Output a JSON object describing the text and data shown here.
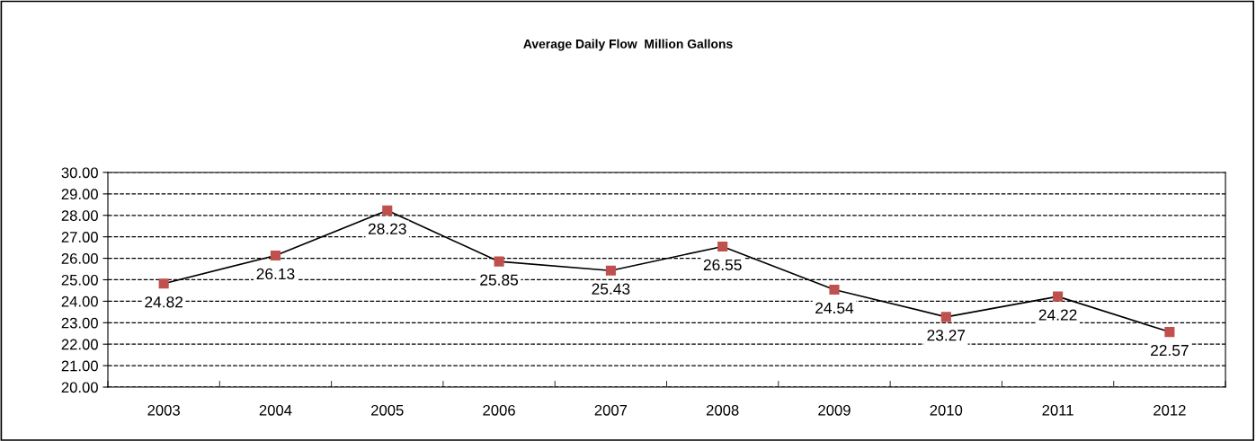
{
  "chart_data": {
    "type": "line",
    "title": "Average Daily Flow  Million Gallons",
    "categories": [
      "2003",
      "2004",
      "2005",
      "2006",
      "2007",
      "2008",
      "2009",
      "2010",
      "2011",
      "2012"
    ],
    "series": [
      {
        "color": "#c0504d",
        "values": [
          24.82,
          26.13,
          28.23,
          25.85,
          25.43,
          26.55,
          24.54,
          23.27,
          24.22,
          22.57
        ]
      }
    ],
    "ylim": [
      20,
      30
    ],
    "yticks": [
      {
        "value": 20,
        "label": "20.00"
      },
      {
        "value": 21,
        "label": "21.00"
      },
      {
        "value": 22,
        "label": "22.00"
      },
      {
        "value": 23,
        "label": "23.00"
      },
      {
        "value": 24,
        "label": "24.00"
      },
      {
        "value": 25,
        "label": "25.00"
      },
      {
        "value": 26,
        "label": "26.00"
      },
      {
        "value": 27,
        "label": "27.00"
      },
      {
        "value": 28,
        "label": "28.00"
      },
      {
        "value": 29,
        "label": "29.00"
      },
      {
        "value": 30,
        "label": "30.00"
      }
    ],
    "grid": "y",
    "legend": false,
    "marker": "square",
    "line_style": "solid",
    "data_labels": true
  }
}
